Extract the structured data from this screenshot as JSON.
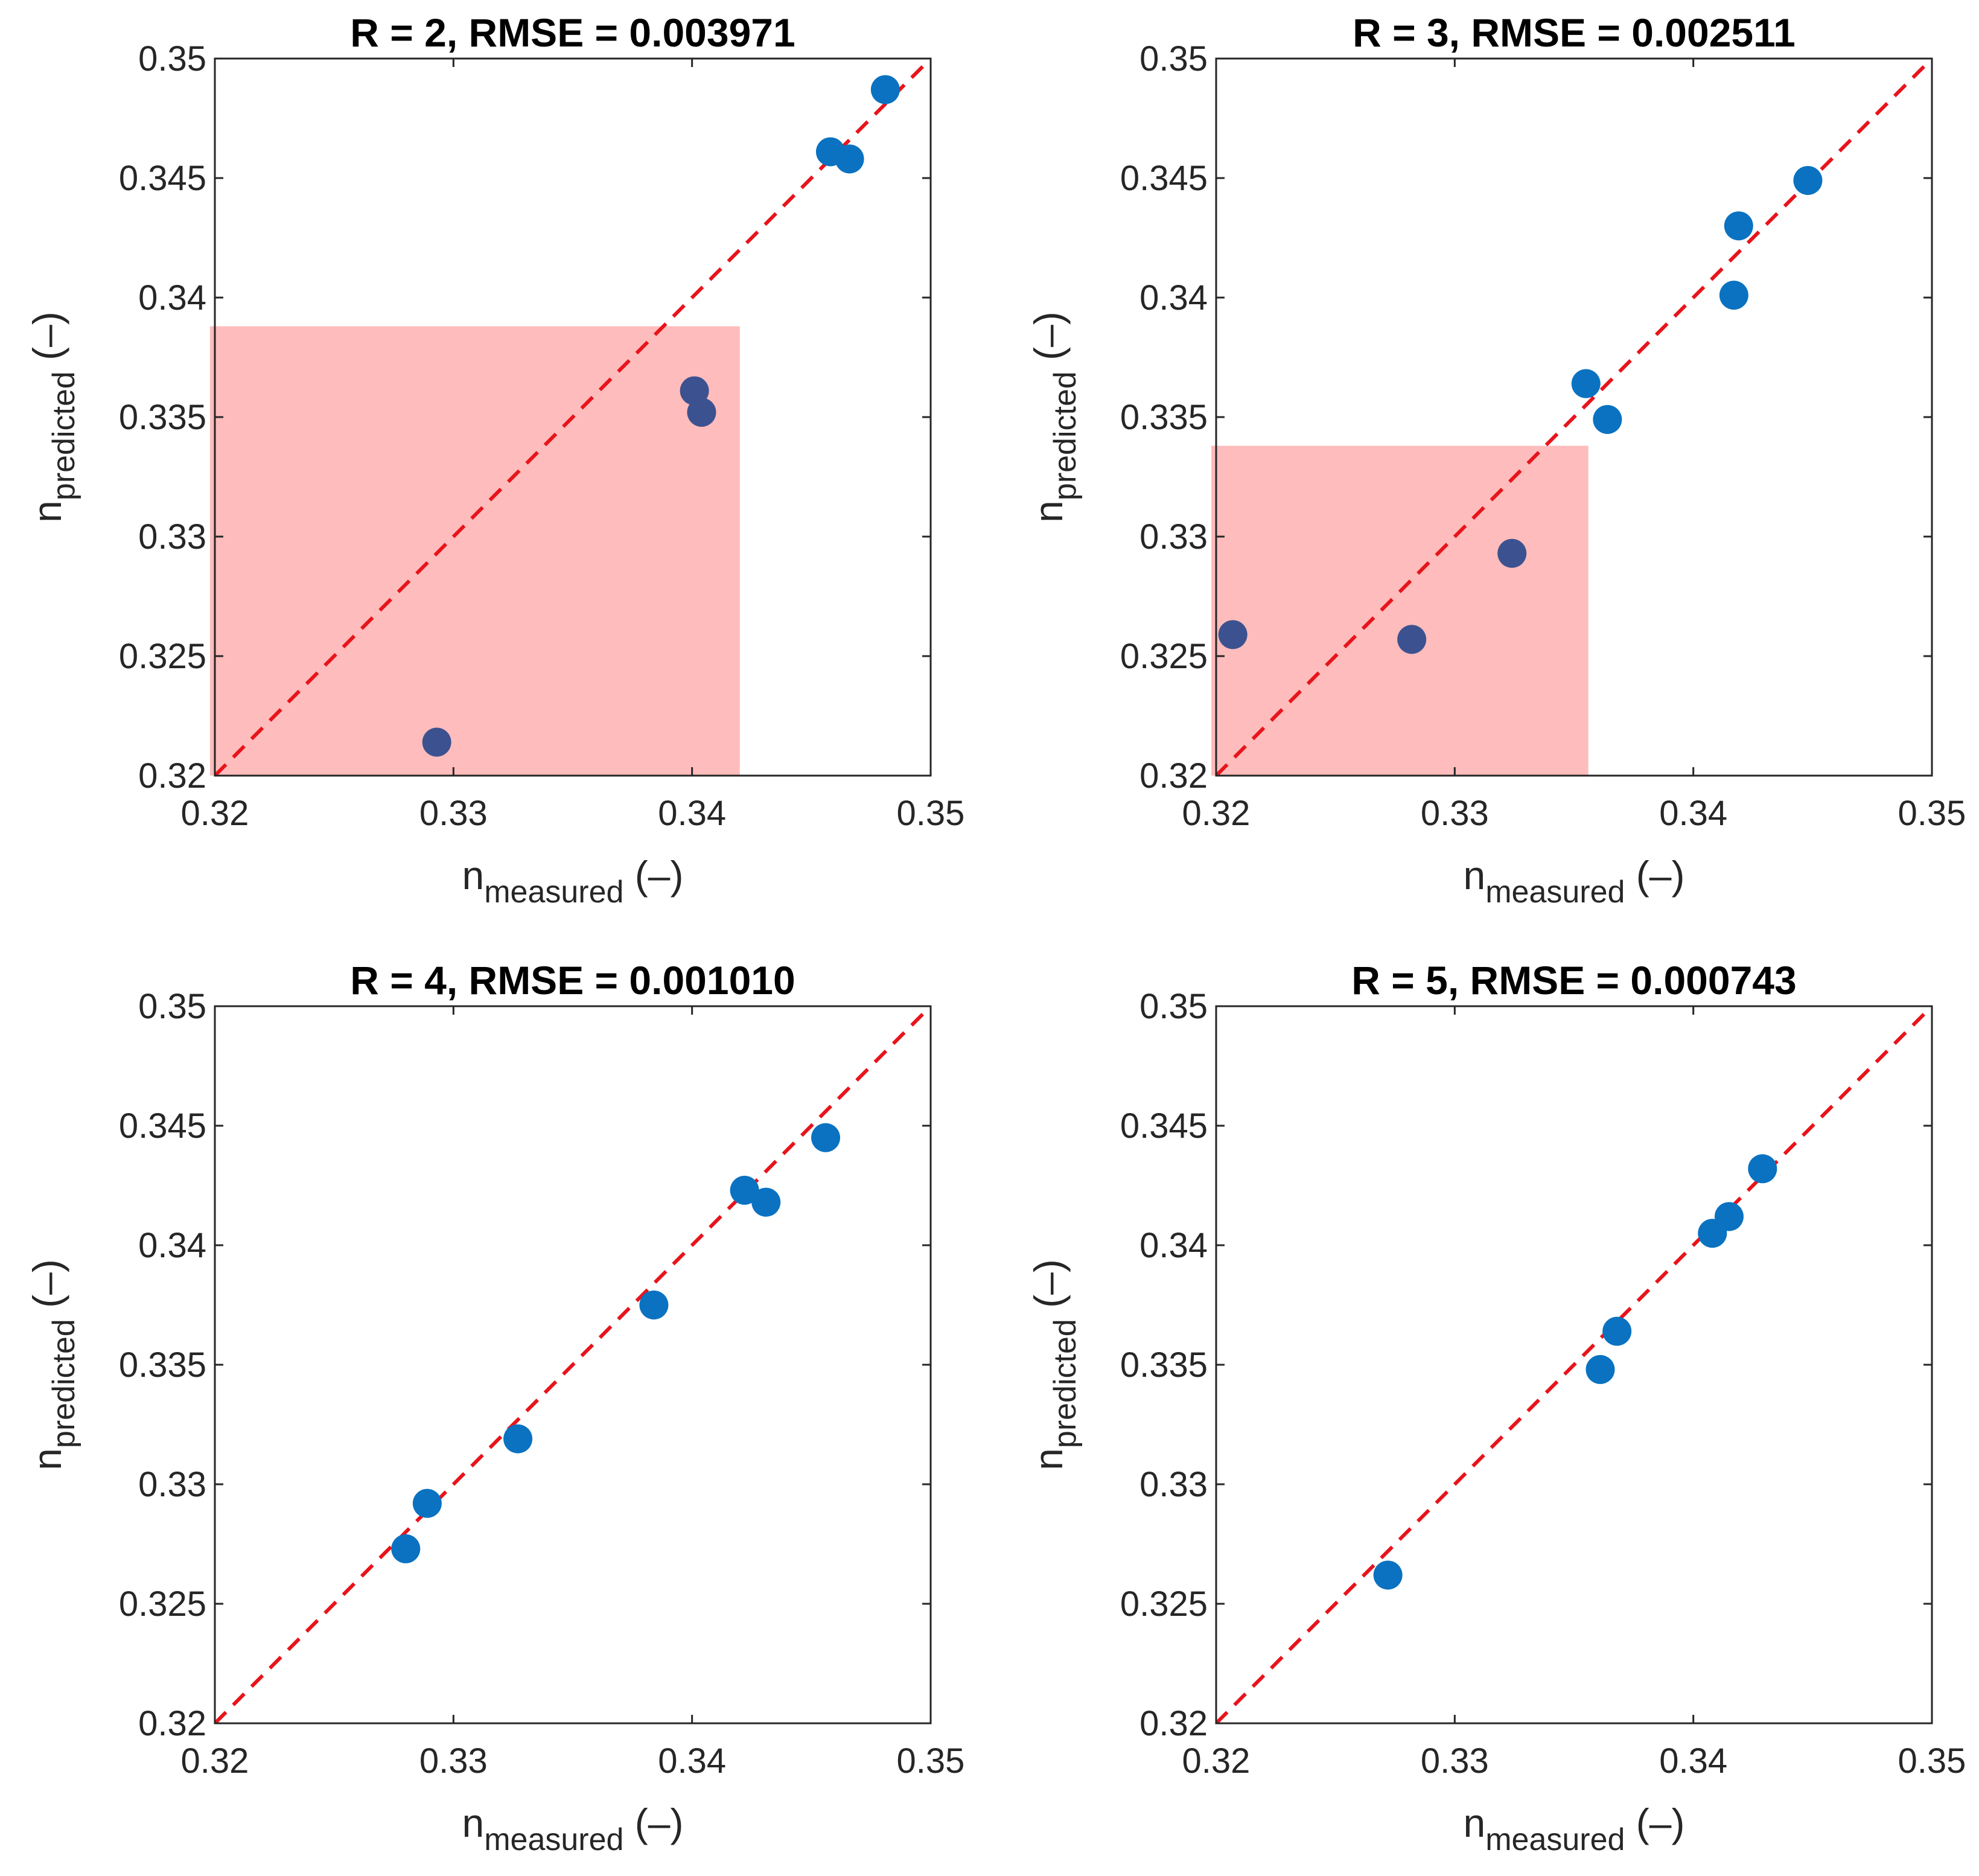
{
  "chart_data": [
    {
      "type": "scatter",
      "title": "R = 2, RMSE = 0.003971",
      "xlabel": {
        "base": "n",
        "sub": "measured",
        "suffix": " (–)"
      },
      "ylabel": {
        "base": "n",
        "sub": "predicted",
        "suffix": " (–)"
      },
      "xlim": [
        0.32,
        0.35
      ],
      "ylim": [
        0.32,
        0.35
      ],
      "xticks": [
        0.32,
        0.33,
        0.34,
        0.35
      ],
      "yticks": [
        0.32,
        0.325,
        0.33,
        0.335,
        0.34,
        0.345,
        0.35
      ],
      "xtick_labels": [
        "0.32",
        "0.33",
        "0.34",
        "0.35"
      ],
      "ytick_labels": [
        "0.32",
        "0.325",
        "0.33",
        "0.335",
        "0.34",
        "0.345",
        "0.35"
      ],
      "reference_line": {
        "from": [
          0.32,
          0.32
        ],
        "to": [
          0.35,
          0.35
        ],
        "style": "dashed",
        "color": "#e8141b"
      },
      "highlight_region": {
        "x": [
          0.32,
          0.342
        ],
        "y": [
          0.32,
          0.3388
        ],
        "color": "#ffb3b3",
        "opacity": 0.88
      },
      "points": [
        {
          "x": 0.3293,
          "y": 0.3214
        },
        {
          "x": 0.3401,
          "y": 0.3361
        },
        {
          "x": 0.3404,
          "y": 0.3352
        },
        {
          "x": 0.3458,
          "y": 0.3461
        },
        {
          "x": 0.3466,
          "y": 0.3458
        },
        {
          "x": 0.3481,
          "y": 0.3487
        }
      ]
    },
    {
      "type": "scatter",
      "title": "R = 3, RMSE = 0.002511",
      "xlabel": {
        "base": "n",
        "sub": "measured",
        "suffix": " (–)"
      },
      "ylabel": {
        "base": "n",
        "sub": "predicted",
        "suffix": " (–)"
      },
      "xlim": [
        0.32,
        0.35
      ],
      "ylim": [
        0.32,
        0.35
      ],
      "xticks": [
        0.32,
        0.33,
        0.34,
        0.35
      ],
      "yticks": [
        0.32,
        0.325,
        0.33,
        0.335,
        0.34,
        0.345,
        0.35
      ],
      "xtick_labels": [
        "0.32",
        "0.33",
        "0.34",
        "0.35"
      ],
      "ytick_labels": [
        "0.32",
        "0.325",
        "0.33",
        "0.335",
        "0.34",
        "0.345",
        "0.35"
      ],
      "reference_line": {
        "from": [
          0.32,
          0.32
        ],
        "to": [
          0.35,
          0.35
        ],
        "style": "dashed",
        "color": "#e8141b"
      },
      "highlight_region": {
        "x": [
          0.32,
          0.3356
        ],
        "y": [
          0.32,
          0.3338
        ],
        "color": "#ffb3b3",
        "opacity": 0.88
      },
      "points": [
        {
          "x": 0.3207,
          "y": 0.3259
        },
        {
          "x": 0.3282,
          "y": 0.3257
        },
        {
          "x": 0.3324,
          "y": 0.3293
        },
        {
          "x": 0.3355,
          "y": 0.3364
        },
        {
          "x": 0.3364,
          "y": 0.3349
        },
        {
          "x": 0.3417,
          "y": 0.3401
        },
        {
          "x": 0.3419,
          "y": 0.343
        },
        {
          "x": 0.3448,
          "y": 0.3449
        }
      ]
    },
    {
      "type": "scatter",
      "title": "R = 4, RMSE = 0.001010",
      "xlabel": {
        "base": "n",
        "sub": "measured",
        "suffix": " (–)"
      },
      "ylabel": {
        "base": "n",
        "sub": "predicted",
        "suffix": " (–)"
      },
      "xlim": [
        0.32,
        0.35
      ],
      "ylim": [
        0.32,
        0.35
      ],
      "xticks": [
        0.32,
        0.33,
        0.34,
        0.35
      ],
      "yticks": [
        0.32,
        0.325,
        0.33,
        0.335,
        0.34,
        0.345,
        0.35
      ],
      "xtick_labels": [
        "0.32",
        "0.33",
        "0.34",
        "0.35"
      ],
      "ytick_labels": [
        "0.32",
        "0.325",
        "0.33",
        "0.335",
        "0.34",
        "0.345",
        "0.35"
      ],
      "reference_line": {
        "from": [
          0.32,
          0.32
        ],
        "to": [
          0.35,
          0.35
        ],
        "style": "dashed",
        "color": "#e8141b"
      },
      "points": [
        {
          "x": 0.328,
          "y": 0.3273
        },
        {
          "x": 0.3289,
          "y": 0.3292
        },
        {
          "x": 0.3327,
          "y": 0.3319
        },
        {
          "x": 0.3384,
          "y": 0.3375
        },
        {
          "x": 0.3422,
          "y": 0.3423
        },
        {
          "x": 0.3431,
          "y": 0.3418
        },
        {
          "x": 0.3456,
          "y": 0.3445
        }
      ]
    },
    {
      "type": "scatter",
      "title": "R = 5, RMSE = 0.000743",
      "xlabel": {
        "base": "n",
        "sub": "measured",
        "suffix": " (–)"
      },
      "ylabel": {
        "base": "n",
        "sub": "predicted",
        "suffix": " (–)"
      },
      "xlim": [
        0.32,
        0.35
      ],
      "ylim": [
        0.32,
        0.35
      ],
      "xticks": [
        0.32,
        0.33,
        0.34,
        0.35
      ],
      "yticks": [
        0.32,
        0.325,
        0.33,
        0.335,
        0.34,
        0.345,
        0.35
      ],
      "xtick_labels": [
        "0.32",
        "0.33",
        "0.34",
        "0.35"
      ],
      "ytick_labels": [
        "0.32",
        "0.325",
        "0.33",
        "0.335",
        "0.34",
        "0.345",
        "0.35"
      ],
      "reference_line": {
        "from": [
          0.32,
          0.32
        ],
        "to": [
          0.35,
          0.35
        ],
        "style": "dashed",
        "color": "#e8141b"
      },
      "points": [
        {
          "x": 0.3272,
          "y": 0.3262
        },
        {
          "x": 0.3361,
          "y": 0.3348
        },
        {
          "x": 0.3368,
          "y": 0.3364
        },
        {
          "x": 0.3408,
          "y": 0.3405
        },
        {
          "x": 0.3415,
          "y": 0.3412
        },
        {
          "x": 0.3429,
          "y": 0.3432
        }
      ]
    }
  ],
  "colors": {
    "marker": "#0a72c1",
    "marker_in_region": "#3c5290",
    "axis": "#262626",
    "reference_line": "#e8141b",
    "region": "#ffb3b3"
  }
}
